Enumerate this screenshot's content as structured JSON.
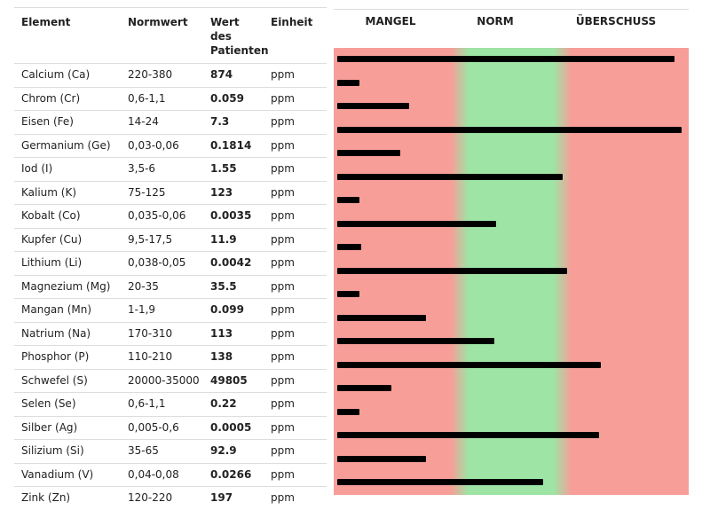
{
  "table": {
    "headers": {
      "element": "Element",
      "norm": "Normwert",
      "value": "Wert des Patienten",
      "unit": "Einheit"
    },
    "rows": [
      {
        "element": "Calcium (Ca)",
        "norm": "220-380",
        "value": "874",
        "unit": "ppm"
      },
      {
        "element": "Chrom (Cr)",
        "norm": "0,6-1,1",
        "value": "0.059",
        "unit": "ppm"
      },
      {
        "element": "Eisen (Fe)",
        "norm": "14-24",
        "value": "7.3",
        "unit": "ppm"
      },
      {
        "element": "Germanium (Ge)",
        "norm": "0,03-0,06",
        "value": "0.1814",
        "unit": "ppm"
      },
      {
        "element": "Iod (I)",
        "norm": "3,5-6",
        "value": "1.55",
        "unit": "ppm"
      },
      {
        "element": "Kalium (K)",
        "norm": "75-125",
        "value": "123",
        "unit": "ppm"
      },
      {
        "element": "Kobalt (Co)",
        "norm": "0,035-0,06",
        "value": "0.0035",
        "unit": "ppm"
      },
      {
        "element": "Kupfer (Cu)",
        "norm": "9,5-17,5",
        "value": "11.9",
        "unit": "ppm"
      },
      {
        "element": "Lithium (Li)",
        "norm": "0,038-0,05",
        "value": "0.0042",
        "unit": "ppm"
      },
      {
        "element": "Magnezium (Mg)",
        "norm": "20-35",
        "value": "35.5",
        "unit": "ppm"
      },
      {
        "element": "Mangan (Mn)",
        "norm": "1-1,9",
        "value": "0.099",
        "unit": "ppm"
      },
      {
        "element": "Natrium (Na)",
        "norm": "170-310",
        "value": "113",
        "unit": "ppm"
      },
      {
        "element": "Phosphor (P)",
        "norm": "110-210",
        "value": "138",
        "unit": "ppm"
      },
      {
        "element": "Schwefel (S)",
        "norm": "20000-35000",
        "value": "49805",
        "unit": "ppm"
      },
      {
        "element": "Selen (Se)",
        "norm": "0,6-1,1",
        "value": "0.22",
        "unit": "ppm"
      },
      {
        "element": "Silber (Ag)",
        "norm": "0,005-0,6",
        "value": "0.0005",
        "unit": "ppm"
      },
      {
        "element": "Silizium (Si)",
        "norm": "35-65",
        "value": "92.9",
        "unit": "ppm"
      },
      {
        "element": "Vanadium (V)",
        "norm": "0,04-0,08",
        "value": "0.0266",
        "unit": "ppm"
      },
      {
        "element": "Zink (Zn)",
        "norm": "120-220",
        "value": "197",
        "unit": "ppm"
      }
    ]
  },
  "chart_data": {
    "type": "bar",
    "orientation": "horizontal",
    "zones": [
      "MANGEL",
      "NORM",
      "ÜBERSCHUSS"
    ],
    "zone_colors": {
      "MANGEL": "#f79e98",
      "NORM": "#9ee4a4",
      "ÜBERSCHUSS": "#f79e98"
    },
    "bar_color": "#000000",
    "categories": [
      "Calcium (Ca)",
      "Chrom (Cr)",
      "Eisen (Fe)",
      "Germanium (Ge)",
      "Iod (I)",
      "Kalium (K)",
      "Kobalt (Co)",
      "Kupfer (Cu)",
      "Lithium (Li)",
      "Magnezium (Mg)",
      "Mangan (Mn)",
      "Natrium (Na)",
      "Phosphor (P)",
      "Schwefel (S)",
      "Selen (Se)",
      "Silber (Ag)",
      "Silizium (Si)",
      "Vanadium (V)",
      "Zink (Zn)"
    ],
    "values": [
      874,
      0.059,
      7.3,
      0.1814,
      1.55,
      123,
      0.0035,
      11.9,
      0.0042,
      35.5,
      0.099,
      113,
      138,
      49805,
      0.22,
      0.0005,
      92.9,
      0.0266,
      197
    ],
    "norm_low": [
      220,
      0.6,
      14,
      0.03,
      3.5,
      75,
      0.035,
      9.5,
      0.038,
      20,
      1,
      170,
      110,
      20000,
      0.6,
      0.005,
      35,
      0.04,
      120
    ],
    "norm_high": [
      380,
      1.1,
      24,
      0.06,
      6,
      125,
      0.06,
      17.5,
      0.05,
      35,
      1.9,
      310,
      210,
      35000,
      1.1,
      0.6,
      65,
      0.08,
      220
    ]
  }
}
